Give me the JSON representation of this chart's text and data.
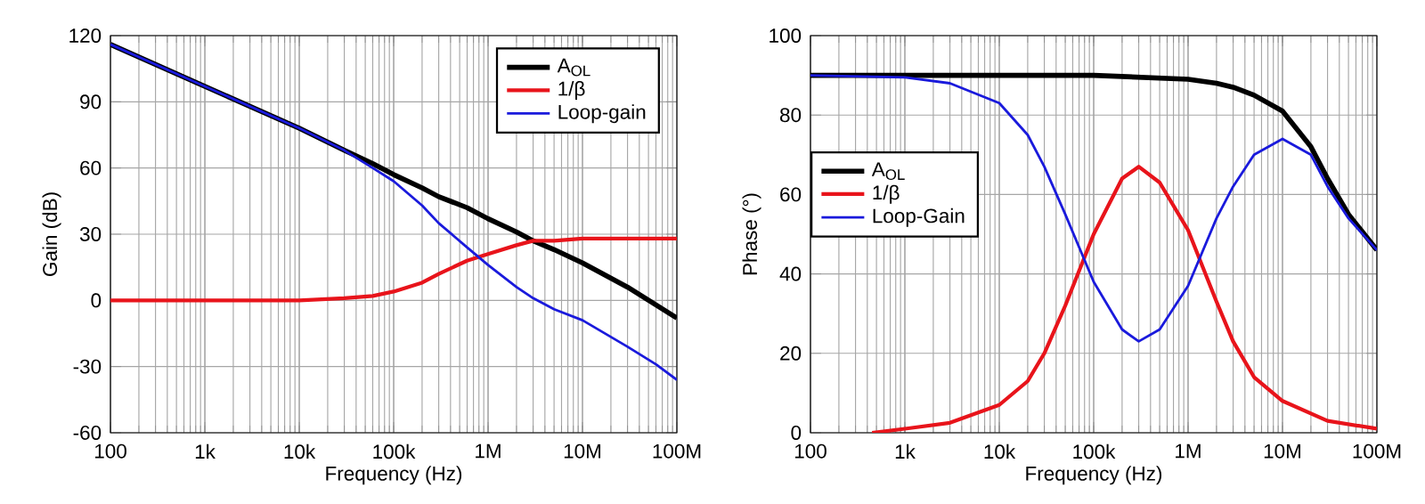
{
  "chart_data": [
    {
      "type": "line",
      "xlabel": "Frequency (Hz)",
      "ylabel": "Gain (dB)",
      "log": "x",
      "grid": true,
      "legend": "top right",
      "xlim": [
        100,
        100000000
      ],
      "ylim": [
        -60,
        120
      ],
      "xticks": [
        100,
        {
          "value": 1000,
          "label": "1k"
        },
        {
          "value": 10000,
          "label": "10k"
        },
        {
          "value": 100000,
          "label": "100k"
        },
        {
          "value": 1000000,
          "label": "1M"
        },
        {
          "value": 10000000,
          "label": "10M"
        },
        {
          "value": 100000000,
          "label": "100M"
        }
      ],
      "yticks": [
        -60,
        -30,
        0,
        30,
        60,
        90,
        120
      ],
      "x": [
        100,
        1000,
        10000,
        30000,
        60000,
        100000,
        200000,
        300000,
        600000,
        1000000,
        2000000,
        3000000,
        5000000,
        10000000,
        30000000,
        60000000,
        100000000
      ],
      "series": [
        {
          "name": "A$_{OL}$",
          "color": "#000000",
          "values": [
            116,
            97,
            78,
            68,
            62,
            57,
            51,
            47,
            42,
            37,
            31,
            27,
            23,
            17,
            6,
            -2,
            -8
          ]
        },
        {
          "name": "1/β",
          "color": "#e8141b",
          "values": [
            0,
            0,
            0,
            1,
            2,
            4,
            8,
            12,
            18,
            21,
            25,
            27,
            27,
            28,
            28,
            28,
            28
          ]
        },
        {
          "name": "Loop-gain",
          "color": "#1a1adc",
          "values": [
            116,
            97,
            78,
            68,
            60,
            54,
            43,
            35,
            24,
            16,
            6,
            1,
            -4,
            -9,
            -21,
            -29,
            -36
          ]
        }
      ]
    },
    {
      "type": "line",
      "xlabel": "Frequency (Hz)",
      "ylabel": "Phase (°)",
      "log": "x",
      "grid": true,
      "legend": "left",
      "xlim": [
        100,
        100000000
      ],
      "ylim": [
        0,
        100
      ],
      "xticks": [
        100,
        {
          "value": 1000,
          "label": "1k"
        },
        {
          "value": 10000,
          "label": "10k"
        },
        {
          "value": 100000,
          "label": "100k"
        },
        {
          "value": 1000000,
          "label": "1M"
        },
        {
          "value": 10000000,
          "label": "10M"
        },
        {
          "value": 100000000,
          "label": "100M"
        }
      ],
      "yticks": [
        0,
        20,
        40,
        60,
        80,
        100
      ],
      "series": [
        {
          "name": "A$_{OL}$",
          "color": "#000000",
          "x": [
            100,
            1000,
            10000,
            100000,
            1000000,
            2000000,
            3000000,
            5000000,
            10000000,
            20000000,
            30000000,
            50000000,
            100000000
          ],
          "values": [
            90,
            90,
            90,
            90,
            89,
            88,
            87,
            85,
            81,
            72,
            64,
            55,
            46
          ]
        },
        {
          "name": "1/β",
          "color": "#e8141b",
          "x": [
            450,
            1000,
            3000,
            10000,
            20000,
            30000,
            50000,
            100000,
            200000,
            300000,
            500000,
            1000000,
            2000000,
            3000000,
            5000000,
            10000000,
            30000000,
            100000000
          ],
          "values": [
            0,
            1,
            2.5,
            7,
            13,
            20,
            32,
            50,
            64,
            67,
            63,
            51,
            33,
            23,
            14,
            8,
            3,
            1
          ]
        },
        {
          "name": "Loop-Gain",
          "color": "#1a1adc",
          "x": [
            100,
            1000,
            3000,
            10000,
            20000,
            30000,
            50000,
            100000,
            200000,
            300000,
            500000,
            1000000,
            2000000,
            3000000,
            5000000,
            10000000,
            20000000,
            30000000,
            50000000,
            100000000
          ],
          "values": [
            90,
            89.5,
            88,
            83,
            75,
            67,
            55,
            38,
            26,
            23,
            26,
            37,
            54,
            62,
            70,
            74,
            70,
            62,
            54,
            46
          ]
        }
      ]
    }
  ]
}
